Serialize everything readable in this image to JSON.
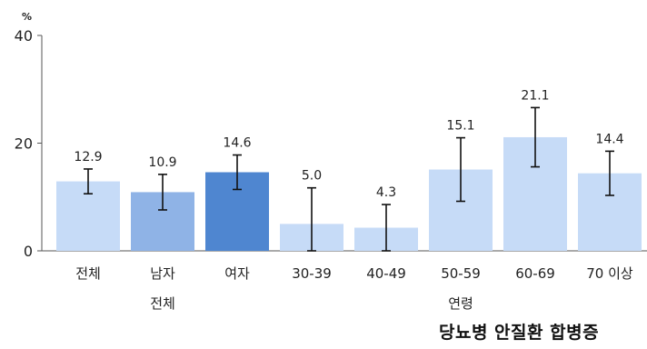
{
  "chart_data": {
    "type": "bar",
    "ylabel": "%",
    "ylim": [
      0,
      40
    ],
    "yticks": [
      0,
      20,
      40
    ],
    "grid": false,
    "error_bars": true,
    "categories": [
      "전체",
      "남자",
      "여자",
      "30-39",
      "40-49",
      "50-59",
      "60-69",
      "70 이상"
    ],
    "values": [
      12.9,
      10.9,
      14.6,
      5.0,
      4.3,
      15.1,
      21.1,
      14.4
    ],
    "value_labels": [
      "12.9",
      "10.9",
      "14.6",
      "5.0",
      "4.3",
      "15.1",
      "21.1",
      "14.4"
    ],
    "error_low": [
      10.6,
      7.6,
      11.4,
      0.0,
      0.0,
      9.2,
      15.6,
      10.3
    ],
    "error_high": [
      15.2,
      14.2,
      17.8,
      11.7,
      8.6,
      21.0,
      26.6,
      18.5
    ],
    "bar_colors": [
      "#c6dbf7",
      "#8fb3e6",
      "#4f86d0",
      "#c6dbf7",
      "#c6dbf7",
      "#c6dbf7",
      "#c6dbf7",
      "#c6dbf7"
    ],
    "groups": [
      {
        "label": "전체",
        "categories": [
          "전체",
          "남자",
          "여자"
        ]
      },
      {
        "label": "연령",
        "categories": [
          "30-39",
          "40-49",
          "50-59",
          "60-69",
          "70 이상"
        ]
      }
    ]
  },
  "footer": {
    "title": "당뇨병 안질환 합병증"
  }
}
